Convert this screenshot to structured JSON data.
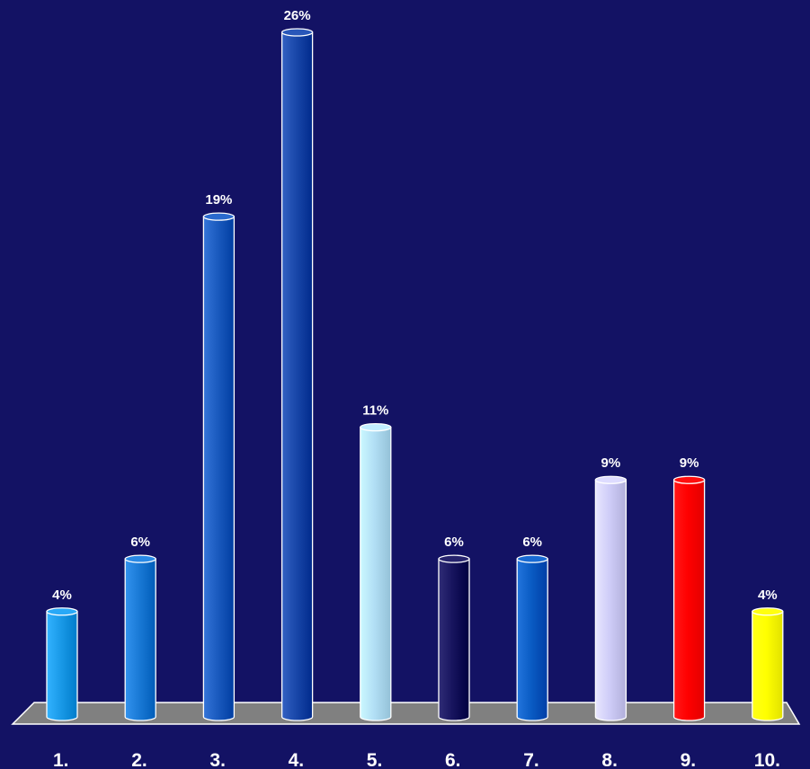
{
  "chart_data": {
    "type": "bar",
    "style": "3d-cylinder",
    "categories": [
      "1.",
      "2.",
      "3.",
      "4.",
      "5.",
      "6.",
      "7.",
      "8.",
      "9.",
      "10."
    ],
    "values": [
      4,
      6,
      19,
      26,
      11,
      6,
      6,
      9,
      9,
      4
    ],
    "data_labels": [
      "4%",
      "6%",
      "19%",
      "26%",
      "11%",
      "6%",
      "6%",
      "9%",
      "9%",
      "4%"
    ],
    "unit": "%",
    "colors": [
      "#1a9ae8",
      "#1a7ad6",
      "#1b5bbf",
      "#1a48aa",
      "#b2dff5",
      "#17145e",
      "#0a5cc4",
      "#cfcdf8",
      "#ff0000",
      "#ffff00"
    ],
    "background": "#131264",
    "floor_color": "#808080",
    "title": "",
    "xlabel": "",
    "ylabel": "",
    "ylim": [
      0,
      26
    ],
    "grid": false,
    "legend": "none"
  }
}
